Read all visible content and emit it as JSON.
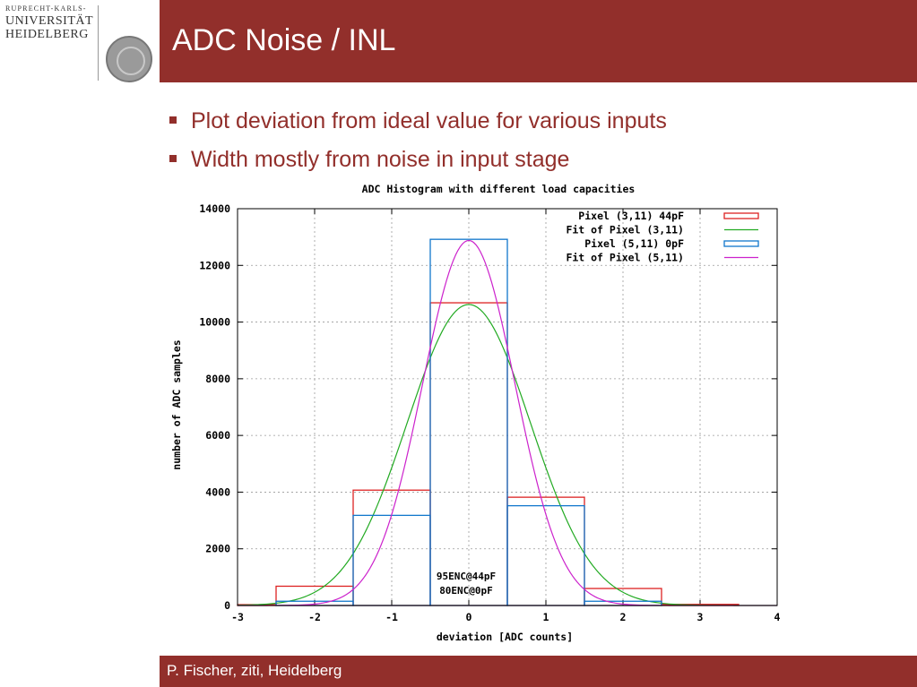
{
  "logo": {
    "line1": "RUPRECHT-KARLS-",
    "line2": "UNIVERSITÄT",
    "line3": "HEIDELBERG"
  },
  "slide": {
    "title": "ADC Noise / INL",
    "bullets": [
      "Plot deviation from ideal value for various inputs",
      "Width mostly from noise in input stage"
    ],
    "footer": "P. Fischer, ziti, Heidelberg"
  },
  "colors": {
    "brand": "#922f2b",
    "series1": "#dd2222",
    "series2": "#22aa22",
    "series3": "#1177cc",
    "series4": "#cc22cc"
  },
  "chart_data": {
    "type": "histogram",
    "title": "ADC Histogram with different load capacities",
    "xlabel": "deviation [ADC counts]",
    "ylabel": "number of ADC samples",
    "xlim": [
      -3,
      4
    ],
    "ylim": [
      0,
      14000
    ],
    "xticks": [
      -3,
      -2,
      -1,
      0,
      1,
      2,
      3,
      4
    ],
    "yticks": [
      0,
      2000,
      4000,
      6000,
      8000,
      10000,
      12000,
      14000
    ],
    "grid": true,
    "legend_position": "top-right",
    "series": [
      {
        "name": "Pixel (3,11) 44pF",
        "kind": "steps",
        "color": "#dd2222",
        "bins": [
          {
            "x0": -3.0,
            "x1": -2.5,
            "y": 30
          },
          {
            "x0": -2.5,
            "x1": -1.5,
            "y": 680
          },
          {
            "x0": -1.5,
            "x1": -0.5,
            "y": 4070
          },
          {
            "x0": -0.5,
            "x1": 0.5,
            "y": 10680
          },
          {
            "x0": 0.5,
            "x1": 1.5,
            "y": 3820
          },
          {
            "x0": 1.5,
            "x1": 2.5,
            "y": 600
          },
          {
            "x0": 2.5,
            "x1": 3.5,
            "y": 40
          }
        ]
      },
      {
        "name": "Fit of Pixel (3,11)",
        "kind": "gauss",
        "color": "#22aa22",
        "amplitude": 10620,
        "mean": 0.0,
        "sigma": 0.8
      },
      {
        "name": "Pixel (5,11) 0pF",
        "kind": "steps",
        "color": "#1177cc",
        "bins": [
          {
            "x0": -2.5,
            "x1": -1.5,
            "y": 150
          },
          {
            "x0": -1.5,
            "x1": -0.5,
            "y": 3180
          },
          {
            "x0": -0.5,
            "x1": 0.5,
            "y": 12920
          },
          {
            "x0": 0.5,
            "x1": 1.5,
            "y": 3520
          },
          {
            "x0": 1.5,
            "x1": 2.5,
            "y": 150
          }
        ]
      },
      {
        "name": "Fit of Pixel (5,11)",
        "kind": "gauss",
        "color": "#cc22cc",
        "amplitude": 12880,
        "mean": 0.0,
        "sigma": 0.6
      }
    ],
    "annotations": [
      "95ENC@44pF",
      "80ENC@0pF"
    ]
  }
}
